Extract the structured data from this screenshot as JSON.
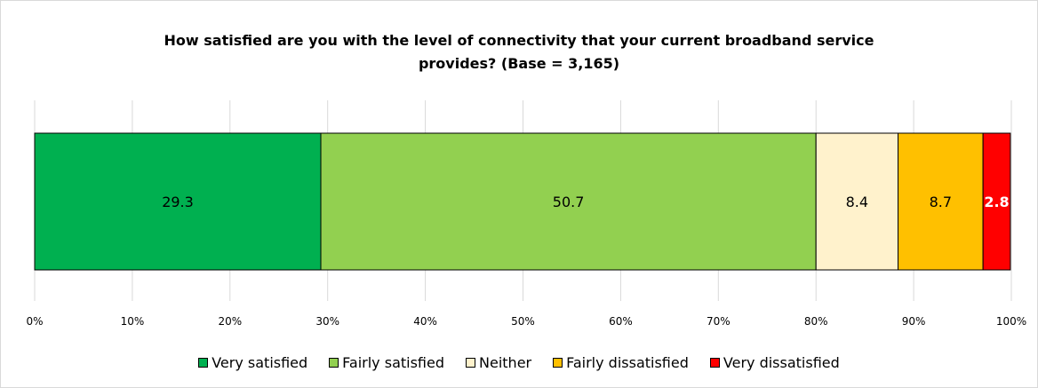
{
  "chart_data": {
    "type": "bar",
    "orientation": "horizontal",
    "stacked": true,
    "title": "How satisfied are you with the level of connectivity that your current broadband service provides? (Base = 3,165)",
    "title_lines": [
      "How satisfied are you with the level of connectivity that your current broadband service",
      "provides? (Base = 3,165)"
    ],
    "xlim": [
      0,
      100
    ],
    "x_ticks": [
      "0%",
      "10%",
      "20%",
      "30%",
      "40%",
      "50%",
      "60%",
      "70%",
      "80%",
      "90%",
      "100%"
    ],
    "grid": "vertical",
    "legend_position": "bottom",
    "series": [
      {
        "name": "Very satisfied",
        "value": 29.3,
        "label": "29.3",
        "color": "#00b050",
        "label_color": "#000000",
        "label_bold": false
      },
      {
        "name": "Fairly satisfied",
        "value": 50.7,
        "label": "50.7",
        "color": "#92d050",
        "label_color": "#000000",
        "label_bold": false
      },
      {
        "name": "Neither",
        "value": 8.4,
        "label": "8.4",
        "color": "#fff2cc",
        "label_color": "#000000",
        "label_bold": false
      },
      {
        "name": "Fairly dissatisfied",
        "value": 8.7,
        "label": "8.7",
        "color": "#ffc000",
        "label_color": "#000000",
        "label_bold": false
      },
      {
        "name": "Very dissatisfied",
        "value": 2.8,
        "label": "2.8",
        "color": "#ff0000",
        "label_color": "#ffffff",
        "label_bold": true
      }
    ]
  }
}
